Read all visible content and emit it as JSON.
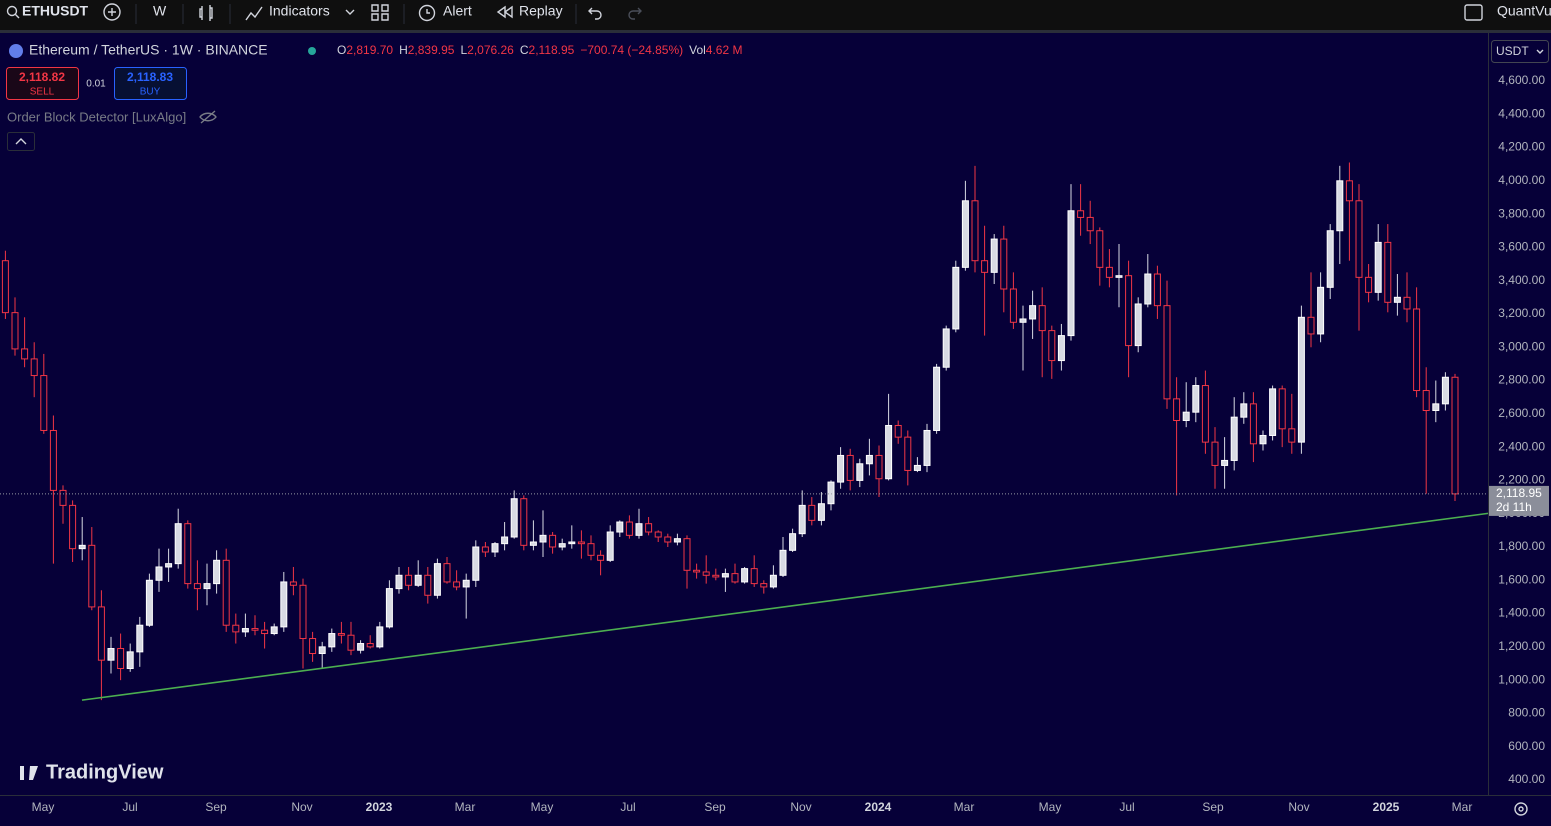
{
  "toolbar": {
    "symbol": "ETHUSDT",
    "interval": "W",
    "indicators": "Indicators",
    "alert": "Alert",
    "replay": "Replay",
    "account": "QuantVu"
  },
  "legend": {
    "title": "Ethereum / TetherUS · 1W · BINANCE",
    "open_label": "O",
    "open": "2,819.70",
    "high_label": "H",
    "high": "2,839.95",
    "low_label": "L",
    "low": "2,076.26",
    "close_label": "C",
    "close": "2,118.95",
    "change": "−700.74 (−24.85%)",
    "volume_label": "Vol",
    "volume": "4.62 M"
  },
  "trade": {
    "sell_price": "2,118.82",
    "sell": "SELL",
    "spread": "0.01",
    "buy_price": "2,118.83",
    "buy": "BUY"
  },
  "indicator": "Order Block Detector [LuxAlgo]",
  "currency": "USDT",
  "logo": "TradingView",
  "chart_data": {
    "type": "candlestick",
    "up_color": "#d8dae3",
    "down_color": "#f23645",
    "open": [
      3520,
      3208,
      2990,
      2930,
      2830,
      2500,
      2140,
      2050,
      1790,
      1810,
      1440,
      1120,
      1190,
      1070,
      1170,
      1330,
      1600,
      1680,
      1700,
      1940,
      1580,
      1550,
      1580,
      1720,
      1330,
      1290,
      1310,
      1300,
      1280,
      1320,
      1590,
      1570,
      1250,
      1160,
      1200,
      1280,
      1270,
      1180,
      1220,
      1200,
      1320,
      1550,
      1630,
      1570,
      1630,
      1510,
      1700,
      1590,
      1560,
      1600,
      1800,
      1770,
      1820,
      1860,
      2090,
      1810,
      1830,
      1870,
      1800,
      1820,
      1830,
      1820,
      1750,
      1720,
      1890,
      1950,
      1870,
      1940,
      1890,
      1860,
      1830,
      1850,
      1660,
      1650,
      1630,
      1620,
      1640,
      1590,
      1670,
      1580,
      1560,
      1630,
      1780,
      1880,
      2050,
      1960,
      2060,
      2190,
      2350,
      2200,
      2300,
      2350,
      2210,
      2530,
      2460,
      2260,
      2290,
      2500,
      2880,
      3110,
      3480,
      3880,
      3520,
      3450,
      3650,
      3350,
      3150,
      3170,
      3250,
      3100,
      2920,
      3070,
      3820,
      3780,
      3700,
      3480,
      3420,
      3430,
      3010,
      3260,
      3440,
      3250,
      2690,
      2560,
      2610,
      2770,
      2430,
      2290,
      2320,
      2580,
      2660,
      2420,
      2470,
      2750,
      2510,
      2430,
      3180,
      3080,
      3360,
      3700,
      4000,
      3880,
      3420,
      3330,
      3630,
      3270,
      3300,
      3230,
      2740,
      2620,
      2660,
      2819.7
    ],
    "high": [
      3580,
      3300,
      3180,
      3030,
      2960,
      2590,
      2170,
      2080,
      1980,
      1920,
      1540,
      1260,
      1280,
      1220,
      1380,
      1640,
      1790,
      1790,
      2030,
      1960,
      1720,
      1700,
      1780,
      1790,
      1400,
      1400,
      1390,
      1350,
      1340,
      1650,
      1680,
      1610,
      1290,
      1230,
      1310,
      1350,
      1350,
      1240,
      1270,
      1350,
      1600,
      1680,
      1680,
      1720,
      1680,
      1730,
      1740,
      1660,
      1640,
      1840,
      1830,
      1830,
      1950,
      2140,
      2110,
      1960,
      2020,
      1890,
      1850,
      1930,
      1900,
      1870,
      1780,
      1930,
      1960,
      1990,
      2030,
      1980,
      1900,
      1880,
      1880,
      1870,
      1700,
      1750,
      1670,
      1670,
      1700,
      1680,
      1750,
      1600,
      1690,
      1860,
      1910,
      2140,
      2100,
      2130,
      2200,
      2400,
      2390,
      2330,
      2450,
      2410,
      2720,
      2560,
      2500,
      2340,
      2540,
      2900,
      3130,
      3520,
      4000,
      4090,
      3730,
      3680,
      3730,
      3450,
      3250,
      3340,
      3360,
      3130,
      3140,
      3980,
      3980,
      3880,
      3720,
      3590,
      3620,
      3520,
      3300,
      3560,
      3490,
      3400,
      2820,
      2790,
      2820,
      2860,
      2520,
      2460,
      2700,
      2730,
      2730,
      2500,
      2770,
      2770,
      2720,
      3250,
      3450,
      3450,
      3740,
      4090,
      4110,
      3980,
      3500,
      3740,
      3740,
      3440,
      3450,
      3360,
      2880,
      2800,
      2850,
      2839.95
    ],
    "low": [
      3170,
      2950,
      2880,
      2700,
      2480,
      1700,
      1940,
      1710,
      1720,
      1420,
      880,
      1040,
      1000,
      1050,
      1080,
      1320,
      1530,
      1590,
      1670,
      1550,
      1420,
      1450,
      1520,
      1290,
      1220,
      1260,
      1270,
      1190,
      1270,
      1290,
      1510,
      1070,
      1110,
      1070,
      1170,
      1220,
      1150,
      1160,
      1190,
      1190,
      1310,
      1520,
      1540,
      1560,
      1460,
      1490,
      1580,
      1540,
      1370,
      1560,
      1740,
      1740,
      1780,
      1850,
      1780,
      1780,
      1740,
      1760,
      1780,
      1790,
      1730,
      1720,
      1630,
      1710,
      1860,
      1850,
      1850,
      1870,
      1830,
      1800,
      1810,
      1550,
      1610,
      1580,
      1600,
      1530,
      1580,
      1580,
      1560,
      1520,
      1550,
      1620,
      1770,
      1860,
      1930,
      1930,
      2020,
      2150,
      2140,
      2160,
      2230,
      2100,
      2200,
      2420,
      2170,
      2250,
      2250,
      2480,
      2860,
      3090,
      3460,
      3450,
      3070,
      3380,
      3210,
      3110,
      2860,
      3050,
      2820,
      2810,
      2860,
      3040,
      3670,
      3620,
      3370,
      3360,
      3240,
      2820,
      2970,
      3240,
      3170,
      2630,
      2110,
      2520,
      2550,
      2360,
      2150,
      2150,
      2260,
      2540,
      2310,
      2380,
      2440,
      2400,
      2360,
      2360,
      3000,
      3030,
      3290,
      3500,
      3520,
      3100,
      3270,
      3280,
      3210,
      3190,
      3150,
      2700,
      2120,
      2550,
      2620,
      2076.26
    ],
    "close": [
      3208,
      2990,
      2930,
      2830,
      2500,
      2140,
      2050,
      1790,
      1810,
      1440,
      1120,
      1190,
      1070,
      1170,
      1330,
      1600,
      1680,
      1700,
      1940,
      1580,
      1550,
      1580,
      1720,
      1330,
      1290,
      1310,
      1300,
      1280,
      1320,
      1590,
      1570,
      1250,
      1160,
      1200,
      1280,
      1270,
      1180,
      1220,
      1200,
      1320,
      1550,
      1630,
      1570,
      1630,
      1510,
      1700,
      1590,
      1560,
      1600,
      1800,
      1770,
      1820,
      1860,
      2090,
      1810,
      1830,
      1870,
      1800,
      1820,
      1830,
      1820,
      1750,
      1720,
      1890,
      1950,
      1870,
      1940,
      1890,
      1860,
      1830,
      1850,
      1660,
      1650,
      1630,
      1620,
      1640,
      1590,
      1670,
      1580,
      1560,
      1630,
      1780,
      1880,
      2050,
      1960,
      2060,
      2190,
      2350,
      2200,
      2300,
      2350,
      2210,
      2530,
      2460,
      2260,
      2290,
      2500,
      2880,
      3110,
      3480,
      3880,
      3520,
      3450,
      3650,
      3350,
      3150,
      3170,
      3250,
      3100,
      2920,
      3070,
      3820,
      3780,
      3700,
      3480,
      3420,
      3430,
      3010,
      3260,
      3440,
      3250,
      2690,
      2560,
      2610,
      2770,
      2430,
      2290,
      2320,
      2580,
      2660,
      2420,
      2470,
      2750,
      2510,
      2430,
      3180,
      3080,
      3360,
      3700,
      4000,
      3880,
      3420,
      3330,
      3630,
      3270,
      3300,
      3230,
      2740,
      2620,
      2660,
      2819.7,
      2118.95
    ],
    "ylim": [
      310,
      4888
    ],
    "yticks": [
      {
        "value": 4600,
        "label": "4,600.00"
      },
      {
        "value": 4400,
        "label": "4,400.00"
      },
      {
        "value": 4200,
        "label": "4,200.00"
      },
      {
        "value": 4000,
        "label": "4,000.00"
      },
      {
        "value": 3800,
        "label": "3,800.00"
      },
      {
        "value": 3600,
        "label": "3,600.00"
      },
      {
        "value": 3400,
        "label": "3,400.00"
      },
      {
        "value": 3200,
        "label": "3,200.00"
      },
      {
        "value": 3000,
        "label": "3,000.00"
      },
      {
        "value": 2800,
        "label": "2,800.00"
      },
      {
        "value": 2600,
        "label": "2,600.00"
      },
      {
        "value": 2400,
        "label": "2,400.00"
      },
      {
        "value": 2200,
        "label": "2,200.00"
      },
      {
        "value": 2000,
        "label": "2,000.00"
      },
      {
        "value": 1800,
        "label": "1,800.00"
      },
      {
        "value": 1600,
        "label": "1,600.00"
      },
      {
        "value": 1400,
        "label": "1,400.00"
      },
      {
        "value": 1200,
        "label": "1,200.00"
      },
      {
        "value": 1000,
        "label": "1,000.00"
      },
      {
        "value": 800,
        "label": "800.00"
      },
      {
        "value": 600,
        "label": "600.00"
      },
      {
        "value": 400,
        "label": "400.00"
      }
    ],
    "xticks": [
      "May",
      "Jul",
      "Sep",
      "Nov",
      "2023",
      "Mar",
      "May",
      "Jul",
      "Sep",
      "Nov",
      "2024",
      "Mar",
      "May",
      "Jul",
      "Sep",
      "Nov",
      "2025",
      "Mar"
    ],
    "last_price_label": "2,118.95",
    "countdown": "2d 11h",
    "trendline": {
      "color": "#4caf50",
      "start": 880,
      "end": 2002
    }
  }
}
